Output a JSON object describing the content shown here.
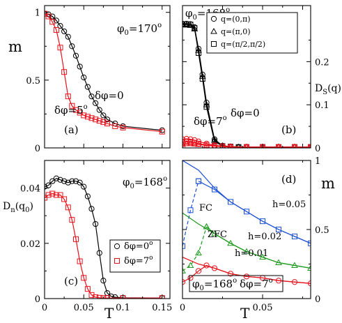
{
  "colors": {
    "black": "#000000",
    "red": "#e8101a",
    "blue": "#1a4fd8",
    "green": "#1e9a1e"
  },
  "labels": {
    "ylabel_m": "m",
    "ylabel_ds": "D",
    "ylabel_ds_sub": "S",
    "ylabel_ds_arg": "(q)",
    "ylabel_dn": "D",
    "ylabel_dn_sub": "n",
    "ylabel_dn_arg": "(q",
    "ylabel_dn_arg_sub": "0",
    "ylabel_dn_close": ")",
    "ylabel_m_right": "m",
    "xlabel_left": "T",
    "xlabel_right": "T"
  },
  "chart_data": [
    {
      "id": "a",
      "type": "line",
      "panel_label": "(a)",
      "annotation": {
        "text": "φ",
        "sub": "0",
        "rest": "=170",
        "sup": "o"
      },
      "xlim": [
        0,
        0.16
      ],
      "ylim": [
        0,
        1.05
      ],
      "xticks": [
        0,
        0.05,
        0.1,
        0.15
      ],
      "yticks": [
        0,
        0.5,
        1
      ],
      "ytick_labels": [
        "0",
        "0.5",
        "1"
      ],
      "series": [
        {
          "name": "δφ=0",
          "color": "#000000",
          "marker": "circle",
          "x": [
            0.0,
            0.005,
            0.01,
            0.015,
            0.02,
            0.025,
            0.03,
            0.035,
            0.04,
            0.045,
            0.05,
            0.055,
            0.06,
            0.065,
            0.07,
            0.075,
            0.08,
            0.09,
            0.1,
            0.15
          ],
          "y": [
            0.99,
            0.985,
            0.97,
            0.94,
            0.9,
            0.86,
            0.82,
            0.75,
            0.68,
            0.6,
            0.52,
            0.45,
            0.38,
            0.33,
            0.28,
            0.24,
            0.21,
            0.18,
            0.16,
            0.13
          ]
        },
        {
          "name": "δφ=5°",
          "color": "#e8101a",
          "marker": "square",
          "x": [
            0.0,
            0.005,
            0.01,
            0.015,
            0.02,
            0.025,
            0.03,
            0.035,
            0.04,
            0.045,
            0.05,
            0.055,
            0.06,
            0.065,
            0.07,
            0.075,
            0.08,
            0.09,
            0.1,
            0.15
          ],
          "y": [
            0.99,
            0.97,
            0.93,
            0.87,
            0.74,
            0.56,
            0.38,
            0.31,
            0.28,
            0.26,
            0.24,
            0.23,
            0.22,
            0.21,
            0.2,
            0.19,
            0.18,
            0.16,
            0.15,
            0.12
          ]
        }
      ],
      "series_labels": [
        {
          "text": "δφ=0",
          "color": "#000000"
        },
        {
          "text": "δφ=5",
          "sup": "o",
          "color": "#e8101a"
        }
      ]
    },
    {
      "id": "b",
      "type": "line",
      "panel_label": "(b)",
      "annotation": {
        "text": "φ",
        "sub": "0",
        "rest": "=168",
        "sup": "o"
      },
      "xlim": [
        0,
        0.16
      ],
      "ylim": [
        0,
        0.33
      ],
      "xticks": [
        0,
        0.05,
        0.1,
        0.15
      ],
      "yticks": [
        0,
        0.1,
        0.2
      ],
      "ytick_labels": [
        "0",
        "0.1",
        "0.2"
      ],
      "legend": [
        {
          "marker": "circle",
          "label": "q=(0,π)"
        },
        {
          "marker": "triangle",
          "label": "q=(π,0)"
        },
        {
          "marker": "square",
          "label": "q=(π/2,π/2)"
        }
      ],
      "series": [
        {
          "name": "q=(0,π) δφ=0",
          "color": "#000000",
          "marker": "circle",
          "x": [
            0.0,
            0.005,
            0.01,
            0.015,
            0.02,
            0.025,
            0.03,
            0.04,
            0.05,
            0.06,
            0.07,
            0.08,
            0.1,
            0.12,
            0.14,
            0.16
          ],
          "y": [
            0.288,
            0.288,
            0.287,
            0.28,
            0.23,
            0.17,
            0.105,
            0.02,
            0.005,
            0.003,
            0.002,
            0.002,
            0.002,
            0.002,
            0.002,
            0.002
          ]
        },
        {
          "name": "q=(π,0) δφ=0",
          "color": "#000000",
          "marker": "triangle",
          "x": [
            0.0,
            0.005,
            0.01,
            0.015,
            0.02,
            0.025,
            0.03,
            0.04,
            0.05,
            0.06,
            0.07,
            0.08,
            0.1,
            0.12,
            0.14,
            0.16
          ],
          "y": [
            0.286,
            0.285,
            0.284,
            0.276,
            0.226,
            0.166,
            0.1,
            0.018,
            0.005,
            0.003,
            0.002,
            0.002,
            0.002,
            0.002,
            0.002,
            0.002
          ]
        },
        {
          "name": "q=(π/2,π/2) δφ=0",
          "color": "#000000",
          "marker": "square",
          "x": [
            0.0,
            0.005,
            0.01,
            0.015,
            0.02,
            0.025,
            0.03,
            0.04,
            0.05,
            0.06,
            0.07,
            0.08,
            0.1,
            0.12,
            0.14,
            0.16
          ],
          "y": [
            0.287,
            0.287,
            0.286,
            0.278,
            0.22,
            0.16,
            0.095,
            0.015,
            0.004,
            0.003,
            0.002,
            0.002,
            0.002,
            0.002,
            0.002,
            0.002
          ]
        },
        {
          "name": "q=(0,π) δφ=7°",
          "color": "#e8101a",
          "marker": "circle",
          "x": [
            0.0,
            0.005,
            0.01,
            0.015,
            0.02,
            0.03,
            0.04,
            0.05,
            0.06,
            0.08,
            0.1,
            0.12,
            0.14,
            0.16
          ],
          "y": [
            0.02,
            0.021,
            0.02,
            0.018,
            0.015,
            0.01,
            0.006,
            0.004,
            0.003,
            0.002,
            0.002,
            0.002,
            0.002,
            0.002
          ]
        },
        {
          "name": "q=(π,0) δφ=7°",
          "color": "#e8101a",
          "marker": "triangle",
          "x": [
            0.0,
            0.005,
            0.01,
            0.015,
            0.02,
            0.03,
            0.04,
            0.05,
            0.06,
            0.08,
            0.1,
            0.12,
            0.14,
            0.16
          ],
          "y": [
            0.008,
            0.01,
            0.01,
            0.009,
            0.008,
            0.006,
            0.004,
            0.003,
            0.002,
            0.002,
            0.002,
            0.002,
            0.002,
            0.002
          ]
        },
        {
          "name": "q=(π/2,π/2) δφ=7°",
          "color": "#e8101a",
          "marker": "square",
          "x": [
            0.0,
            0.005,
            0.01,
            0.015,
            0.02,
            0.03,
            0.04,
            0.05,
            0.06,
            0.08,
            0.1,
            0.12,
            0.14,
            0.16
          ],
          "y": [
            0.012,
            0.014,
            0.013,
            0.012,
            0.01,
            0.007,
            0.005,
            0.003,
            0.002,
            0.002,
            0.002,
            0.002,
            0.002,
            0.002
          ]
        }
      ],
      "series_labels": [
        {
          "text": "δφ=0",
          "color": "#000000"
        },
        {
          "text": "δφ=7",
          "sup": "o",
          "color": "#e8101a"
        }
      ]
    },
    {
      "id": "c",
      "type": "line",
      "panel_label": "(c)",
      "annotation": {
        "text": "φ",
        "sub": "0",
        "rest": "=168",
        "sup": "o"
      },
      "xlim": [
        0,
        0.16
      ],
      "ylim": [
        0,
        0.05
      ],
      "xticks": [
        0,
        0.05,
        0.1,
        0.15
      ],
      "xtick_labels": [
        "0",
        "0.05",
        "0.1",
        "0.15"
      ],
      "yticks": [
        0,
        0.02,
        0.04
      ],
      "ytick_labels": [
        "0",
        "0.02",
        "0.04"
      ],
      "legend": [
        {
          "marker": "circle",
          "label": "δφ=0",
          "sup": "o",
          "color": "#000000"
        },
        {
          "marker": "square",
          "label": "δφ=7",
          "sup": "o",
          "color": "#e8101a"
        }
      ],
      "series": [
        {
          "name": "δφ=0°",
          "color": "#000000",
          "marker": "circle",
          "x": [
            0.0,
            0.005,
            0.01,
            0.015,
            0.02,
            0.025,
            0.03,
            0.035,
            0.04,
            0.045,
            0.05,
            0.055,
            0.06,
            0.065,
            0.07,
            0.075,
            0.08,
            0.085,
            0.09,
            0.1,
            0.15
          ],
          "y": [
            0.0405,
            0.041,
            0.0425,
            0.0435,
            0.043,
            0.0425,
            0.042,
            0.0425,
            0.0425,
            0.042,
            0.0405,
            0.037,
            0.0325,
            0.027,
            0.0165,
            0.0065,
            0.002,
            0.0008,
            0.0005,
            0.0003,
            0.0002
          ]
        },
        {
          "name": "δφ=7°",
          "color": "#e8101a",
          "marker": "square",
          "x": [
            0.0,
            0.005,
            0.01,
            0.015,
            0.02,
            0.025,
            0.03,
            0.035,
            0.04,
            0.045,
            0.05,
            0.055,
            0.06,
            0.065,
            0.07,
            0.075,
            0.08,
            0.1,
            0.15
          ],
          "y": [
            0.0365,
            0.0375,
            0.038,
            0.0375,
            0.0375,
            0.036,
            0.033,
            0.0285,
            0.0215,
            0.0135,
            0.0075,
            0.0035,
            0.0013,
            0.0005,
            0.0003,
            0.0002,
            0.0002,
            0.0002,
            0.0002
          ]
        }
      ]
    },
    {
      "id": "d",
      "type": "line",
      "panel_label": "(d)",
      "annotation": {
        "text": "φ",
        "sub": "0",
        "rest": "=168",
        "sup": "o",
        "text2": "δφ=7",
        "sup2": "o",
        "boxed": true
      },
      "xlim": [
        0,
        0.08
      ],
      "ylim": [
        0,
        1
      ],
      "xticks": [
        0,
        0.05
      ],
      "xtick_labels": [
        "0",
        "0.05"
      ],
      "yticks": [
        0,
        0.5,
        1
      ],
      "ytick_labels": [
        "0",
        "0.5",
        "1"
      ],
      "series": [
        {
          "name": "h=0.05",
          "color": "#1a4fd8",
          "marker": "square",
          "x": [
            0.01,
            0.02,
            0.03,
            0.04,
            0.05,
            0.06,
            0.07,
            0.08
          ],
          "y": [
            0.85,
            0.79,
            0.7,
            0.63,
            0.56,
            0.5,
            0.45,
            0.4
          ]
        },
        {
          "name": "h=0.05 ZFC",
          "color": "#1a4fd8",
          "marker": "square",
          "dashed": true,
          "x": [
            0.0,
            0.005,
            0.01
          ],
          "y": [
            0.38,
            0.64,
            0.85
          ]
        },
        {
          "name": "h=0.05 FC",
          "color": "#1a4fd8",
          "marker": "none",
          "x": [
            0.0,
            0.01,
            0.02,
            0.03,
            0.04,
            0.05,
            0.06,
            0.07,
            0.08
          ],
          "y": [
            1.0,
            0.93,
            0.8,
            0.7,
            0.63,
            0.56,
            0.5,
            0.45,
            0.4
          ]
        },
        {
          "name": "h=0.02",
          "color": "#1e9a1e",
          "marker": "triangle",
          "x": [
            0.015,
            0.02,
            0.03,
            0.04,
            0.05,
            0.06,
            0.07,
            0.08
          ],
          "y": [
            0.52,
            0.47,
            0.4,
            0.34,
            0.3,
            0.26,
            0.24,
            0.22
          ]
        },
        {
          "name": "h=0.02 ZFC",
          "color": "#1e9a1e",
          "marker": "triangle",
          "dashed": true,
          "x": [
            0.0,
            0.005,
            0.01,
            0.015
          ],
          "y": [
            0.2,
            0.24,
            0.33,
            0.52
          ]
        },
        {
          "name": "h=0.02 FC",
          "color": "#1e9a1e",
          "marker": "none",
          "x": [
            0.0,
            0.01,
            0.02,
            0.03,
            0.04,
            0.05,
            0.06,
            0.07,
            0.08
          ],
          "y": [
            0.62,
            0.54,
            0.47,
            0.4,
            0.34,
            0.3,
            0.26,
            0.24,
            0.22
          ]
        },
        {
          "name": "h=0.01",
          "color": "#e8101a",
          "marker": "circle",
          "x": [
            0.0,
            0.005,
            0.01,
            0.015,
            0.02,
            0.03,
            0.04,
            0.05,
            0.06,
            0.07,
            0.08
          ],
          "y": [
            0.12,
            0.15,
            0.2,
            0.24,
            0.22,
            0.18,
            0.16,
            0.15,
            0.13,
            0.12,
            0.11
          ]
        },
        {
          "name": "h=0.01 FC",
          "color": "#e8101a",
          "marker": "none",
          "x": [
            0.0,
            0.01,
            0.02,
            0.03,
            0.04,
            0.05,
            0.06,
            0.07,
            0.08
          ],
          "y": [
            0.3,
            0.25,
            0.22,
            0.18,
            0.16,
            0.15,
            0.13,
            0.12,
            0.11
          ]
        }
      ],
      "series_labels": [
        {
          "text": "h=0.05",
          "color": "#1a4fd8"
        },
        {
          "text": "FC",
          "color": "#1e9a1e"
        },
        {
          "text": "ZFC",
          "color": "#1e9a1e"
        },
        {
          "text": "h=0.02",
          "color": "#1e9a1e"
        },
        {
          "text": "h=0.01",
          "color": "#e8101a"
        }
      ]
    }
  ]
}
